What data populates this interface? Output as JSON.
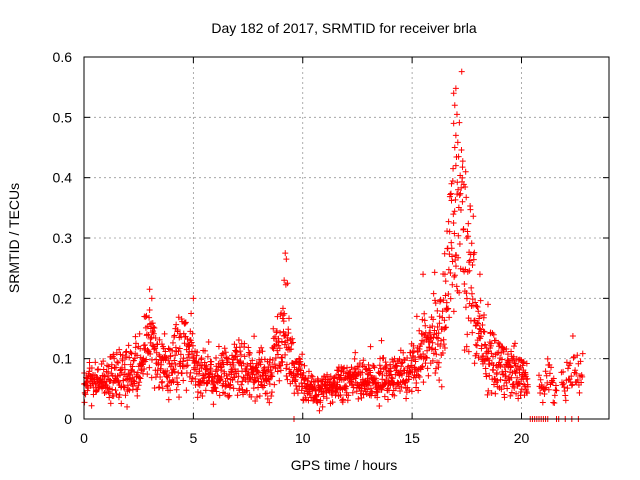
{
  "chart_data": {
    "type": "scatter",
    "title": "Day 182 of 2017, SRMTID for receiver brla",
    "xlabel": "GPS time / hours",
    "ylabel": "SRMTID / TECUs",
    "xlim": [
      0,
      24
    ],
    "ylim": [
      0,
      0.6
    ],
    "x_ticks": [
      0,
      5,
      10,
      15,
      20
    ],
    "x_tick_labels": [
      "0",
      "5",
      "10",
      "15",
      "20"
    ],
    "y_ticks": [
      0,
      0.1,
      0.2,
      0.3,
      0.4,
      0.5,
      0.6
    ],
    "y_tick_labels": [
      "0",
      "0.1",
      "0.2",
      "0.3",
      "0.4",
      "0.5",
      "0.6"
    ],
    "grid": true,
    "marker": "+",
    "marker_color": "#ff0000",
    "series": [
      {
        "name": "SRMTID",
        "profile_x": [
          0,
          0.5,
          1,
          1.5,
          2,
          2.5,
          2.9,
          3.1,
          3.4,
          3.8,
          4.2,
          4.5,
          4.8,
          5.1,
          5.4,
          5.8,
          6.2,
          6.6,
          7.0,
          7.5,
          8.0,
          8.5,
          8.8,
          9.0,
          9.2,
          9.4,
          9.6,
          9.9,
          10.2,
          10.6,
          11.0,
          11.5,
          12.0,
          12.5,
          13.0,
          13.5,
          14.0,
          14.4,
          14.8,
          15.2,
          15.5,
          15.8,
          16.1,
          16.4,
          16.6,
          16.8,
          17.0,
          17.2,
          17.4,
          17.6,
          17.8,
          18.0,
          18.3,
          18.6,
          19.0,
          19.4,
          19.8,
          20.1,
          20.3
        ],
        "profile_y": [
          0.06,
          0.06,
          0.065,
          0.07,
          0.075,
          0.085,
          0.13,
          0.14,
          0.085,
          0.08,
          0.11,
          0.115,
          0.12,
          0.08,
          0.07,
          0.075,
          0.08,
          0.07,
          0.085,
          0.08,
          0.075,
          0.07,
          0.11,
          0.13,
          0.14,
          0.12,
          0.08,
          0.07,
          0.06,
          0.045,
          0.05,
          0.055,
          0.065,
          0.06,
          0.065,
          0.06,
          0.065,
          0.07,
          0.08,
          0.09,
          0.11,
          0.13,
          0.14,
          0.16,
          0.2,
          0.27,
          0.33,
          0.36,
          0.3,
          0.25,
          0.2,
          0.15,
          0.11,
          0.1,
          0.09,
          0.08,
          0.075,
          0.07,
          0.06
        ],
        "gaps": [
          [
            20.35,
            20.8
          ],
          [
            21.6,
            21.8
          ]
        ],
        "late_x": [
          20.8,
          21.0,
          21.2,
          21.4,
          21.6,
          21.8,
          22.0,
          22.2,
          22.4,
          22.6,
          22.8
        ],
        "late_y": [
          0.06,
          0.05,
          0.07,
          0.06,
          0.05,
          0.06,
          0.06,
          0.07,
          0.09,
          0.07,
          0.08
        ],
        "highlights": [
          {
            "x": 3.0,
            "y": 0.215
          },
          {
            "x": 3.1,
            "y": 0.2
          },
          {
            "x": 5.0,
            "y": 0.2
          },
          {
            "x": 9.2,
            "y": 0.275
          },
          {
            "x": 9.25,
            "y": 0.265
          },
          {
            "x": 9.15,
            "y": 0.23
          },
          {
            "x": 9.3,
            "y": 0.225
          },
          {
            "x": 16.9,
            "y": 0.54
          },
          {
            "x": 17.0,
            "y": 0.548
          },
          {
            "x": 16.95,
            "y": 0.52
          },
          {
            "x": 17.05,
            "y": 0.505
          },
          {
            "x": 16.9,
            "y": 0.49
          },
          {
            "x": 17.0,
            "y": 0.47
          },
          {
            "x": 16.95,
            "y": 0.45
          },
          {
            "x": 17.0,
            "y": 0.42
          },
          {
            "x": 16.8,
            "y": 0.39
          },
          {
            "x": 17.1,
            "y": 0.38
          },
          {
            "x": 17.3,
            "y": 0.36
          },
          {
            "x": 17.5,
            "y": 0.3
          },
          {
            "x": 17.6,
            "y": 0.26
          },
          {
            "x": 18.1,
            "y": 0.24
          },
          {
            "x": 16.5,
            "y": 0.24
          },
          {
            "x": 15.5,
            "y": 0.24
          },
          {
            "x": 13.6,
            "y": 0.13
          },
          {
            "x": 13.1,
            "y": 0.12
          },
          {
            "x": 12.4,
            "y": 0.11
          }
        ],
        "zero_points_x": [
          9.6,
          20.4,
          20.5,
          20.6,
          20.7,
          20.8,
          20.9,
          21.0,
          21.1,
          21.2,
          21.6,
          21.7,
          22.0,
          22.3,
          22.6
        ]
      }
    ]
  }
}
